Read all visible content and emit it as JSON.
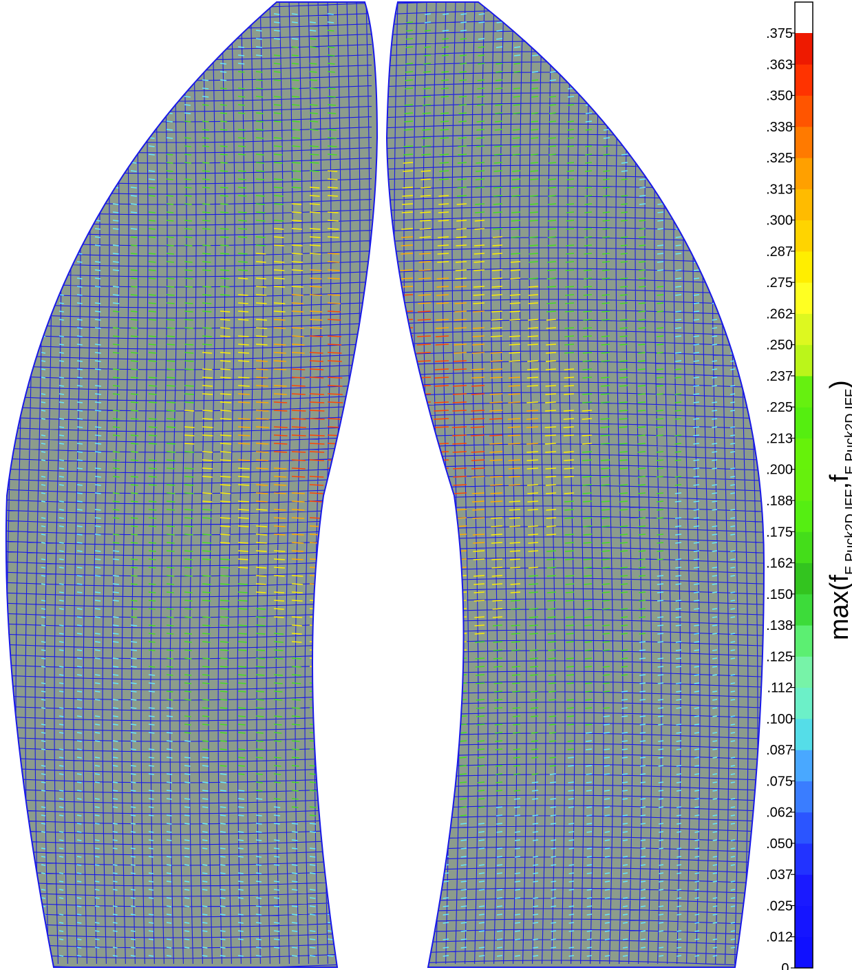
{
  "colorbar": {
    "title": {
      "prefix": "max(f",
      "sub1": "E,Puck2D,IFF",
      "sep": ",f",
      "sub2": "E,Puck2D,IFF",
      "suffix": ")"
    },
    "top_color": "#ffffff",
    "bands": [
      {
        "label": "0.",
        "color": "#1010ff"
      },
      {
        "label": ".012",
        "color": "#1010ff"
      },
      {
        "label": ".025",
        "color": "#1515ff"
      },
      {
        "label": ".037",
        "color": "#1a1aff"
      },
      {
        "label": ".050",
        "color": "#2233ff"
      },
      {
        "label": ".062",
        "color": "#2b55ff"
      },
      {
        "label": ".075",
        "color": "#3a7dff"
      },
      {
        "label": ".087",
        "color": "#49a8ff"
      },
      {
        "label": ".100",
        "color": "#55dde8"
      },
      {
        "label": ".112",
        "color": "#6cf0c8"
      },
      {
        "label": ".125",
        "color": "#77f3a8"
      },
      {
        "label": ".138",
        "color": "#5cef72"
      },
      {
        "label": ".150",
        "color": "#3ddb3a"
      },
      {
        "label": ".162",
        "color": "#33c41f"
      },
      {
        "label": ".175",
        "color": "#44dd1a"
      },
      {
        "label": ".188",
        "color": "#55ee12"
      },
      {
        "label": ".200",
        "color": "#66f00d"
      },
      {
        "label": ".213",
        "color": "#66f20a"
      },
      {
        "label": ".225",
        "color": "#55ee10"
      },
      {
        "label": ".237",
        "color": "#66f010"
      },
      {
        "label": ".250",
        "color": "#bbf51a"
      },
      {
        "label": ".262",
        "color": "#ddf820"
      },
      {
        "label": ".275",
        "color": "#ffff22"
      },
      {
        "label": ".287",
        "color": "#ffee00"
      },
      {
        "label": ".300",
        "color": "#ffd400"
      },
      {
        "label": ".313",
        "color": "#ffbb00"
      },
      {
        "label": ".325",
        "color": "#ffa000"
      },
      {
        "label": ".338",
        "color": "#ff7a00"
      },
      {
        "label": ".350",
        "color": "#ff5500"
      },
      {
        "label": ".363",
        "color": "#ff3300"
      },
      {
        "label": ".375",
        "color": "#ee1a00"
      }
    ]
  },
  "shells": {
    "fill": "#8c9c8c",
    "mesh_color": "#1818e8",
    "arrow_colors": [
      "#44dd22",
      "#66e8ff",
      "#ffee00",
      "#ffaa00",
      "#ff4400"
    ]
  }
}
